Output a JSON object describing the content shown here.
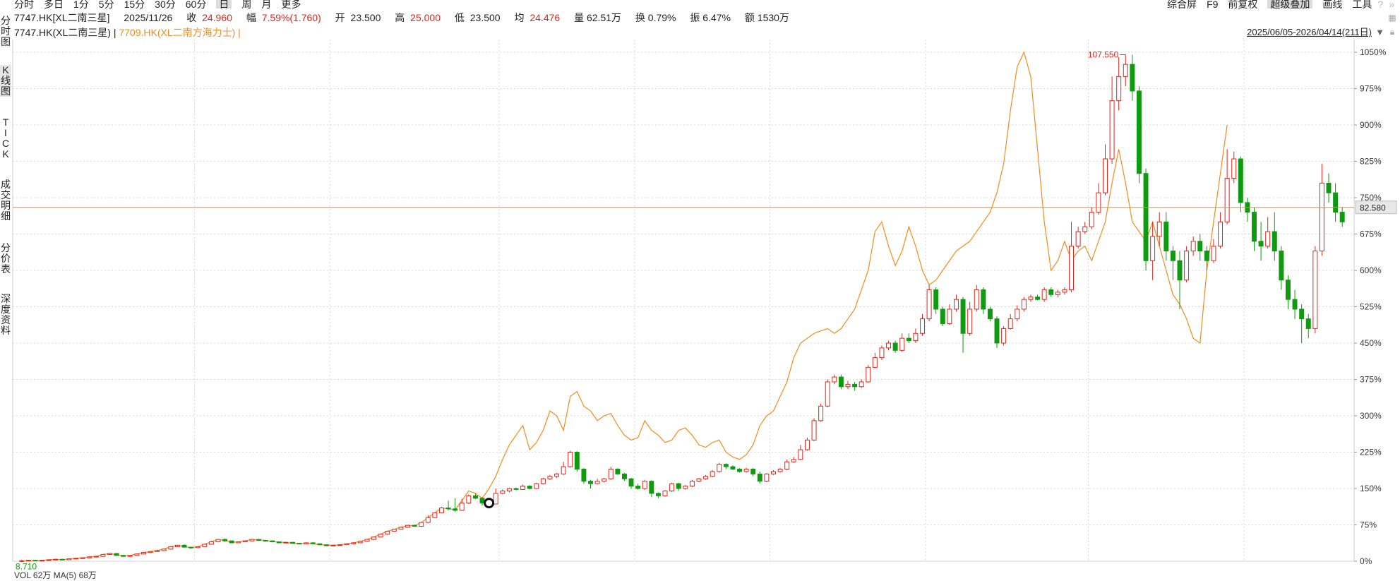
{
  "period_tabs": [
    "分时",
    "多日",
    "1分",
    "5分",
    "15分",
    "30分",
    "60分",
    "日",
    "周",
    "月",
    "更多"
  ],
  "active_period": "日",
  "right_toolbar": {
    "items": [
      "综合屏",
      "F9",
      "前复权",
      "超级叠加",
      "画线",
      "工具"
    ],
    "active": "超级叠加"
  },
  "info": {
    "code": "7747.HK[XL二南三星]",
    "date": "2025/11/26",
    "close_label": "收",
    "close": "24.960",
    "change_label": "幅",
    "change": "7.59%(1.760)",
    "open_label": "开",
    "open": "23.500",
    "high_label": "高",
    "high": "25.000",
    "low_label": "低",
    "low": "23.500",
    "avg_label": "均",
    "avg": "24.476",
    "volume": "量 62.51万",
    "turnover": "换 0.79%",
    "amplitude": "振 6.47%",
    "amount": "额 1530万"
  },
  "legend": {
    "main": "7747.HK(XL二南三星) |",
    "overlay": "7709.HK(XL二南方海力士) |"
  },
  "date_range": "2025/06/05-2026/04/14(211日)",
  "side_tabs": [
    "分时图",
    "K线图",
    "TICK",
    "成交明细",
    "分价表",
    "深度资料"
  ],
  "active_side_tab": "K线图",
  "bottom_label": "VOL 62万 MA(5) 68万",
  "chart_data": {
    "type": "candlestick",
    "y_axis_ticks": [
      "1050%",
      "975%",
      "900%",
      "825%",
      "750%",
      "675%",
      "600%",
      "525%",
      "450%",
      "375%",
      "300%",
      "225%",
      "150%",
      "75%",
      "0%"
    ],
    "ylim": [
      0,
      1050
    ],
    "current_price_label": "82.580",
    "high_marker": "107.550",
    "low_marker": "8.710",
    "colors": {
      "up": "#e1251b",
      "down": "#0f9a0f",
      "overlay": "#f08c1d",
      "price_line": "#f08c1d"
    },
    "candles_pct": [
      [
        0,
        1,
        -2,
        3
      ],
      [
        1,
        2,
        0,
        3
      ],
      [
        2,
        1,
        0,
        3
      ],
      [
        1,
        2,
        0,
        3
      ],
      [
        2,
        3,
        1,
        4
      ],
      [
        3,
        4,
        2,
        5
      ],
      [
        4,
        3,
        2,
        5
      ],
      [
        3,
        5,
        2,
        6
      ],
      [
        5,
        6,
        4,
        7
      ],
      [
        6,
        7,
        5,
        8
      ],
      [
        7,
        9,
        6,
        10
      ],
      [
        9,
        10,
        8,
        11
      ],
      [
        10,
        14,
        9,
        15
      ],
      [
        14,
        16,
        13,
        17
      ],
      [
        16,
        12,
        11,
        17
      ],
      [
        12,
        10,
        9,
        13
      ],
      [
        10,
        12,
        9,
        13
      ],
      [
        12,
        15,
        11,
        16
      ],
      [
        15,
        18,
        14,
        19
      ],
      [
        18,
        20,
        17,
        21
      ],
      [
        20,
        22,
        19,
        24
      ],
      [
        22,
        25,
        21,
        26
      ],
      [
        25,
        30,
        24,
        31
      ],
      [
        30,
        33,
        29,
        34
      ],
      [
        33,
        29,
        28,
        35
      ],
      [
        29,
        28,
        26,
        30
      ],
      [
        28,
        30,
        27,
        31
      ],
      [
        30,
        35,
        29,
        36
      ],
      [
        35,
        40,
        34,
        42
      ],
      [
        40,
        45,
        39,
        46
      ],
      [
        45,
        42,
        40,
        47
      ],
      [
        42,
        38,
        37,
        43
      ],
      [
        38,
        40,
        37,
        41
      ],
      [
        40,
        42,
        39,
        43
      ],
      [
        42,
        45,
        41,
        46
      ],
      [
        45,
        43,
        42,
        46
      ],
      [
        43,
        42,
        41,
        44
      ],
      [
        42,
        40,
        39,
        43
      ],
      [
        40,
        38,
        37,
        41
      ],
      [
        38,
        39,
        37,
        40
      ],
      [
        39,
        37,
        36,
        40
      ],
      [
        37,
        36,
        35,
        38
      ],
      [
        36,
        38,
        35,
        39
      ],
      [
        38,
        36,
        35,
        39
      ],
      [
        36,
        34,
        33,
        37
      ],
      [
        34,
        32,
        31,
        35
      ],
      [
        32,
        33,
        31,
        34
      ],
      [
        33,
        34,
        32,
        35
      ],
      [
        34,
        36,
        33,
        37
      ],
      [
        36,
        38,
        35,
        39
      ],
      [
        38,
        41,
        37,
        42
      ],
      [
        41,
        45,
        40,
        46
      ],
      [
        45,
        50,
        44,
        51
      ],
      [
        50,
        56,
        49,
        57
      ],
      [
        56,
        62,
        55,
        63
      ],
      [
        62,
        66,
        61,
        67
      ],
      [
        66,
        70,
        65,
        71
      ],
      [
        70,
        74,
        69,
        75
      ],
      [
        74,
        72,
        71,
        76
      ],
      [
        72,
        80,
        71,
        81
      ],
      [
        80,
        90,
        79,
        95
      ],
      [
        90,
        100,
        89,
        101
      ],
      [
        100,
        110,
        99,
        112
      ],
      [
        110,
        108,
        105,
        125
      ],
      [
        108,
        105,
        102,
        130
      ],
      [
        105,
        120,
        104,
        129
      ],
      [
        120,
        135,
        118,
        138
      ],
      [
        135,
        130,
        128,
        140
      ],
      [
        130,
        120,
        115,
        132
      ],
      [
        120,
        118,
        116,
        122
      ],
      [
        118,
        140,
        117,
        150
      ],
      [
        140,
        145,
        138,
        148
      ],
      [
        145,
        150,
        142,
        152
      ],
      [
        150,
        148,
        146,
        152
      ],
      [
        148,
        155,
        147,
        158
      ],
      [
        155,
        150,
        148,
        157
      ],
      [
        150,
        160,
        149,
        162
      ],
      [
        160,
        170,
        158,
        172
      ],
      [
        170,
        175,
        168,
        178
      ],
      [
        175,
        180,
        172,
        182
      ],
      [
        180,
        195,
        178,
        205
      ],
      [
        195,
        225,
        193,
        228
      ],
      [
        225,
        190,
        185,
        227
      ],
      [
        190,
        165,
        160,
        192
      ],
      [
        165,
        160,
        150,
        168
      ],
      [
        160,
        165,
        158,
        170
      ],
      [
        165,
        170,
        162,
        172
      ],
      [
        170,
        190,
        168,
        195
      ],
      [
        190,
        180,
        178,
        192
      ],
      [
        180,
        170,
        166,
        182
      ],
      [
        170,
        155,
        150,
        172
      ],
      [
        155,
        150,
        148,
        160
      ],
      [
        150,
        165,
        147,
        168
      ],
      [
        165,
        140,
        132,
        167
      ],
      [
        140,
        135,
        130,
        142
      ],
      [
        135,
        145,
        133,
        147
      ],
      [
        145,
        160,
        143,
        162
      ],
      [
        160,
        150,
        145,
        162
      ],
      [
        150,
        155,
        148,
        157
      ],
      [
        155,
        165,
        153,
        168
      ],
      [
        165,
        170,
        163,
        172
      ],
      [
        170,
        175,
        168,
        178
      ],
      [
        175,
        185,
        173,
        188
      ],
      [
        185,
        200,
        183,
        203
      ],
      [
        200,
        195,
        190,
        202
      ],
      [
        195,
        190,
        188,
        198
      ],
      [
        190,
        185,
        183,
        192
      ],
      [
        185,
        190,
        183,
        193
      ],
      [
        190,
        180,
        175,
        192
      ],
      [
        180,
        165,
        160,
        185
      ],
      [
        165,
        180,
        163,
        182
      ],
      [
        180,
        185,
        178,
        188
      ],
      [
        185,
        190,
        183,
        192
      ],
      [
        190,
        205,
        188,
        210
      ],
      [
        205,
        210,
        203,
        215
      ],
      [
        210,
        230,
        208,
        240
      ],
      [
        230,
        250,
        228,
        255
      ],
      [
        250,
        290,
        248,
        295
      ],
      [
        290,
        320,
        288,
        325
      ],
      [
        320,
        370,
        318,
        375
      ],
      [
        370,
        380,
        365,
        385
      ],
      [
        380,
        360,
        355,
        385
      ],
      [
        360,
        365,
        355,
        372
      ],
      [
        365,
        360,
        352,
        370
      ],
      [
        360,
        370,
        358,
        375
      ],
      [
        370,
        400,
        368,
        405
      ],
      [
        400,
        420,
        398,
        430
      ],
      [
        420,
        440,
        415,
        445
      ],
      [
        440,
        450,
        435,
        455
      ],
      [
        450,
        435,
        430,
        455
      ],
      [
        435,
        460,
        432,
        470
      ],
      [
        460,
        455,
        450,
        470
      ],
      [
        455,
        470,
        450,
        480
      ],
      [
        470,
        500,
        465,
        510
      ],
      [
        500,
        560,
        495,
        570
      ],
      [
        560,
        520,
        510,
        565
      ],
      [
        520,
        490,
        485,
        525
      ],
      [
        490,
        520,
        488,
        530
      ],
      [
        520,
        540,
        515,
        550
      ],
      [
        540,
        470,
        430,
        545
      ],
      [
        470,
        520,
        465,
        535
      ],
      [
        520,
        560,
        515,
        570
      ],
      [
        560,
        520,
        510,
        565
      ],
      [
        520,
        500,
        495,
        525
      ],
      [
        500,
        450,
        440,
        505
      ],
      [
        450,
        480,
        445,
        485
      ],
      [
        480,
        500,
        478,
        510
      ],
      [
        500,
        520,
        495,
        528
      ],
      [
        520,
        540,
        515,
        545
      ],
      [
        540,
        545,
        535,
        550
      ],
      [
        545,
        540,
        538,
        550
      ],
      [
        540,
        560,
        535,
        565
      ],
      [
        560,
        550,
        545,
        565
      ],
      [
        550,
        555,
        545,
        560
      ],
      [
        555,
        560,
        550,
        565
      ],
      [
        560,
        650,
        555,
        700
      ],
      [
        650,
        680,
        645,
        690
      ],
      [
        680,
        690,
        675,
        700
      ],
      [
        690,
        720,
        685,
        730
      ],
      [
        720,
        760,
        715,
        780
      ],
      [
        760,
        830,
        755,
        860
      ],
      [
        830,
        950,
        820,
        1000
      ],
      [
        950,
        1000,
        930,
        1040
      ],
      [
        1000,
        1025,
        980,
        1045
      ],
      [
        1025,
        970,
        950,
        1045
      ],
      [
        970,
        800,
        780,
        980
      ],
      [
        800,
        620,
        600,
        810
      ],
      [
        620,
        670,
        580,
        700
      ],
      [
        670,
        700,
        650,
        720
      ],
      [
        700,
        640,
        620,
        720
      ],
      [
        640,
        620,
        580,
        650
      ],
      [
        620,
        580,
        520,
        640
      ],
      [
        580,
        640,
        575,
        650
      ],
      [
        640,
        660,
        630,
        670
      ],
      [
        660,
        640,
        620,
        675
      ],
      [
        640,
        620,
        600,
        650
      ],
      [
        620,
        650,
        615,
        665
      ],
      [
        650,
        700,
        645,
        720
      ],
      [
        700,
        790,
        695,
        850
      ],
      [
        790,
        830,
        780,
        845
      ],
      [
        830,
        740,
        720,
        835
      ],
      [
        740,
        720,
        700,
        750
      ],
      [
        720,
        660,
        640,
        730
      ],
      [
        660,
        650,
        620,
        700
      ],
      [
        650,
        680,
        645,
        710
      ],
      [
        680,
        640,
        620,
        720
      ],
      [
        640,
        580,
        560,
        650
      ],
      [
        580,
        540,
        520,
        590
      ],
      [
        540,
        520,
        500,
        560
      ],
      [
        520,
        500,
        450,
        530
      ],
      [
        500,
        480,
        460,
        510
      ],
      [
        480,
        640,
        470,
        650
      ],
      [
        640,
        780,
        630,
        820
      ],
      [
        780,
        760,
        740,
        800
      ],
      [
        760,
        720,
        700,
        780
      ],
      [
        720,
        700,
        690,
        730
      ]
    ],
    "overlay_pct": [
      0,
      1,
      1,
      2,
      3,
      4,
      3,
      5,
      6,
      7,
      9,
      10,
      14,
      16,
      13,
      11,
      12,
      15,
      18,
      20,
      22,
      25,
      30,
      33,
      30,
      28,
      30,
      35,
      40,
      45,
      43,
      39,
      40,
      42,
      45,
      44,
      43,
      41,
      39,
      39,
      37,
      36,
      37,
      36,
      34,
      33,
      33,
      34,
      36,
      38,
      41,
      45,
      50,
      56,
      62,
      66,
      70,
      74,
      73,
      80,
      90,
      100,
      110,
      108,
      106,
      125,
      145,
      140,
      130,
      150,
      175,
      210,
      240,
      260,
      280,
      230,
      245,
      270,
      310,
      300,
      270,
      340,
      350,
      320,
      310,
      290,
      300,
      305,
      280,
      260,
      250,
      255,
      290,
      270,
      260,
      245,
      250,
      270,
      275,
      260,
      240,
      235,
      245,
      250,
      225,
      215,
      210,
      220,
      240,
      280,
      300,
      310,
      340,
      370,
      420,
      450,
      460,
      470,
      475,
      480,
      470,
      480,
      500,
      520,
      560,
      600,
      680,
      700,
      650,
      610,
      640,
      690,
      650,
      600,
      570,
      580,
      600,
      620,
      640,
      650,
      660,
      680,
      700,
      720,
      760,
      820,
      930,
      1020,
      1050,
      1000,
      850,
      700,
      600,
      620,
      660,
      620,
      640,
      650,
      620,
      660,
      700,
      780,
      850,
      780,
      700,
      680,
      660,
      700,
      650,
      600,
      550,
      530,
      500,
      460,
      450,
      600,
      700,
      800,
      900
    ]
  }
}
